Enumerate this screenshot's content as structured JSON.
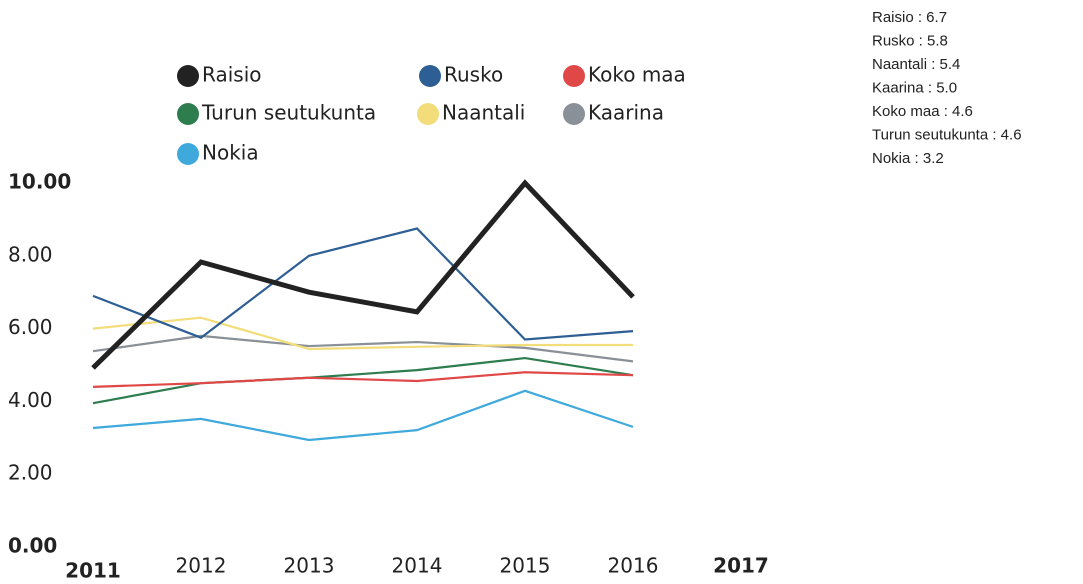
{
  "chart_data": {
    "type": "line",
    "x": [
      2011,
      2012,
      2013,
      2014,
      2015,
      2016
    ],
    "xlim": [
      2011,
      2017
    ],
    "xticks": [
      2011,
      2012,
      2013,
      2014,
      2015,
      2016,
      2017
    ],
    "ylim": [
      0,
      10
    ],
    "yticks": [
      {
        "value": 0,
        "label": "0.00"
      },
      {
        "value": 2,
        "label": "2.00"
      },
      {
        "value": 4,
        "label": "4.00"
      },
      {
        "value": 6,
        "label": "6.00"
      },
      {
        "value": 8,
        "label": "8.00"
      },
      {
        "value": 10,
        "label": "10.00"
      }
    ],
    "series": [
      {
        "name": "Raisio",
        "color": "#222222",
        "values": [
          4.92,
          7.83,
          7.0,
          6.46,
          10.0,
          6.87
        ]
      },
      {
        "name": "Rusko",
        "color": "#2e5f94",
        "values": [
          6.9,
          5.75,
          8.0,
          8.75,
          5.7,
          5.93
        ]
      },
      {
        "name": "Koko maa",
        "color": "#e04848",
        "values": [
          4.4,
          4.5,
          4.65,
          4.56,
          4.8,
          4.72
        ]
      },
      {
        "name": "Turun seutukunta",
        "color": "#2e7d4f",
        "values": [
          3.95,
          4.5,
          4.65,
          4.86,
          5.19,
          4.72
        ]
      },
      {
        "name": "Naantali",
        "color": "#f3dc7a",
        "values": [
          6.0,
          6.3,
          5.44,
          5.5,
          5.55,
          5.55
        ]
      },
      {
        "name": "Kaarina",
        "color": "#8a9097",
        "values": [
          5.38,
          5.8,
          5.52,
          5.63,
          5.47,
          5.1
        ]
      },
      {
        "name": "Nokia",
        "color": "#3fa9dc",
        "values": [
          3.27,
          3.52,
          2.94,
          3.21,
          4.29,
          3.3
        ]
      }
    ],
    "side_list": [
      "Raisio : 6.7",
      "Rusko : 5.8",
      "Naantali : 5.4",
      "Kaarina : 5.0",
      "Koko maa : 4.6",
      "Turun seutukunta : 4.6",
      "Nokia : 3.2"
    ]
  }
}
